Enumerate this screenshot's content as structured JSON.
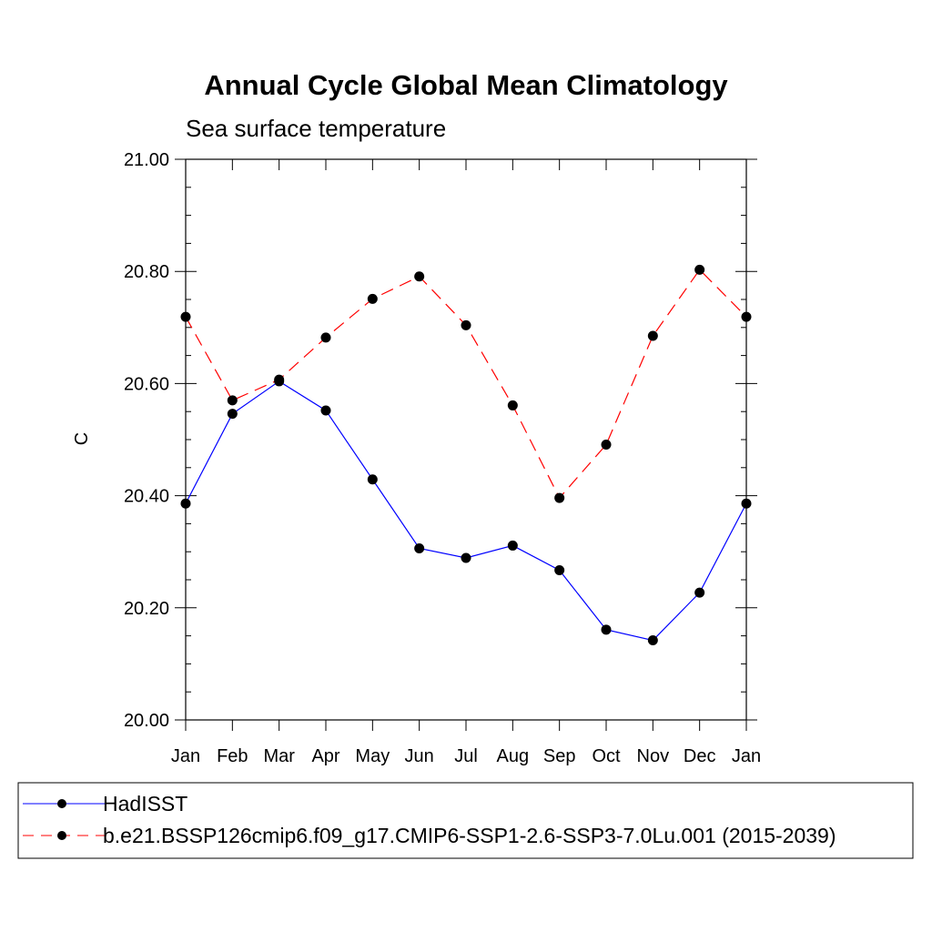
{
  "chart_data": {
    "type": "line",
    "title": "Annual Cycle Global Mean Climatology",
    "subtitle": "Sea surface temperature",
    "xlabel": "",
    "ylabel": "C",
    "categories": [
      "Jan",
      "Feb",
      "Mar",
      "Apr",
      "May",
      "Jun",
      "Jul",
      "Aug",
      "Sep",
      "Oct",
      "Nov",
      "Dec",
      "Jan"
    ],
    "ylim": [
      20.0,
      21.0
    ],
    "yticks": [
      "20.00",
      "20.20",
      "20.40",
      "20.60",
      "20.80",
      "21.00"
    ],
    "grid": false,
    "legend_position": "bottom",
    "series": [
      {
        "name": "HadISST",
        "color": "#0000ff",
        "style": "solid",
        "marker": "filled-circle",
        "values": [
          20.386,
          20.546,
          20.604,
          20.552,
          20.429,
          20.306,
          20.289,
          20.311,
          20.267,
          20.161,
          20.142,
          20.227,
          20.386
        ]
      },
      {
        "name": "b.e21.BSSP126cmip6.f09_g17.CMIP6-SSP1-2.6-SSP3-7.0Lu.001 (2015-2039)",
        "color": "#ff0000",
        "style": "dashed",
        "marker": "filled-circle",
        "values": [
          20.719,
          20.57,
          20.607,
          20.682,
          20.751,
          20.791,
          20.704,
          20.561,
          20.396,
          20.491,
          20.685,
          20.803,
          20.719
        ]
      }
    ]
  }
}
